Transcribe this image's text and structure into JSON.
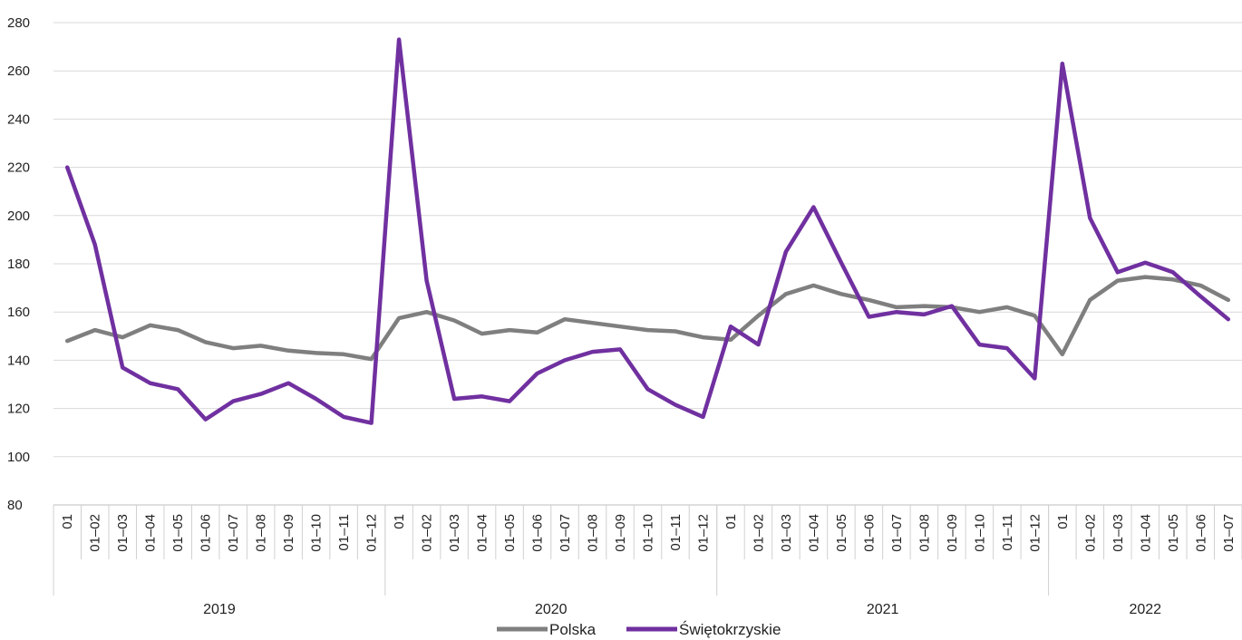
{
  "chart_data": {
    "type": "line",
    "title": "",
    "xlabel": "",
    "ylabel": "",
    "ylim": [
      80,
      280
    ],
    "yticks": [
      80,
      100,
      120,
      140,
      160,
      180,
      200,
      220,
      240,
      260,
      280
    ],
    "grid": "horizontal",
    "legend_position": "bottom",
    "categories": [
      "01",
      "01–02",
      "01–03",
      "01–04",
      "01–05",
      "01–06",
      "01–07",
      "01–08",
      "01–09",
      "01–10",
      "01–11",
      "01–12",
      "01",
      "01–02",
      "01–03",
      "01–04",
      "01–05",
      "01–06",
      "01–07",
      "01–08",
      "01–09",
      "01–10",
      "01–11",
      "01–12",
      "01",
      "01–02",
      "01–03",
      "01–04",
      "01–05",
      "01–06",
      "01–07",
      "01–08",
      "01–09",
      "01–10",
      "01–11",
      "01–12",
      "01",
      "01–02",
      "01–03",
      "01–04",
      "01–05",
      "01–06",
      "01–07"
    ],
    "groups": [
      {
        "label": "2019",
        "count": 12
      },
      {
        "label": "2020",
        "count": 12
      },
      {
        "label": "2021",
        "count": 12
      },
      {
        "label": "2022",
        "count": 7
      }
    ],
    "series": [
      {
        "name": "Polska",
        "color": "#7f7f7f",
        "values": [
          148,
          152.5,
          149.5,
          154.5,
          152.5,
          147.5,
          145,
          146,
          144,
          143,
          142.5,
          140.5,
          157.5,
          160,
          156.5,
          151,
          152.5,
          151.5,
          157,
          155.5,
          154,
          152.5,
          152,
          149.5,
          148.5,
          158.5,
          167.5,
          171,
          167.5,
          165,
          162,
          162.5,
          162,
          160,
          162,
          158.5,
          142.5,
          165,
          173,
          174.5,
          173.5,
          171,
          165
        ]
      },
      {
        "name": "Świętokrzyskie",
        "color": "#7030a0",
        "values": [
          220,
          188,
          137,
          130.5,
          128,
          115.5,
          123,
          126,
          130.5,
          124,
          116.5,
          114,
          273,
          173,
          124,
          125,
          123,
          134.5,
          140,
          143.5,
          144.5,
          128,
          121.5,
          116.5,
          154,
          146.5,
          185,
          203.5,
          180.5,
          158,
          160,
          159,
          162.5,
          146.5,
          145,
          132.5,
          263,
          199,
          176.5,
          180.5,
          176.5,
          166.5,
          157
        ]
      }
    ]
  }
}
